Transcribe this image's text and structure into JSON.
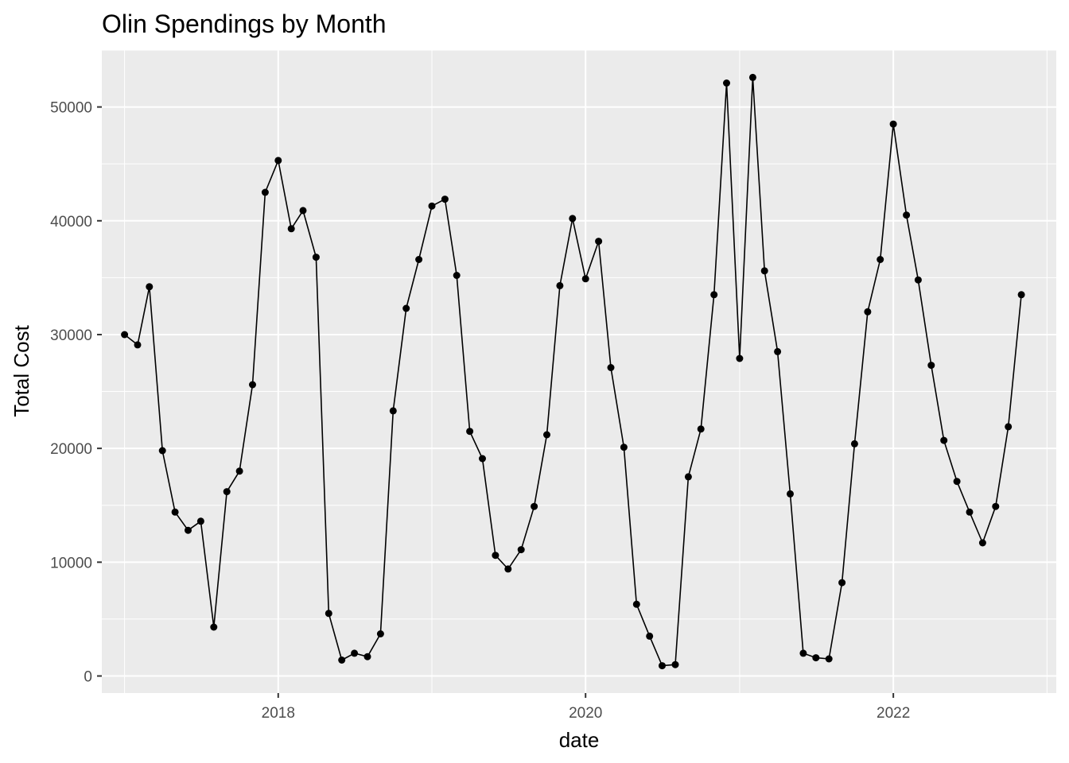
{
  "chart_data": {
    "type": "line",
    "title": "Olin Spendings by Month",
    "xlabel": "date",
    "ylabel": "Total Cost",
    "x_ticks": [
      "2018",
      "2020",
      "2022"
    ],
    "y_ticks": [
      "0",
      "10000",
      "20000",
      "30000",
      "40000",
      "50000"
    ],
    "ylim": [
      -1500,
      55000
    ],
    "xlim": [
      "2016-11-08",
      "2023-01-23"
    ],
    "grid": true,
    "legend": "none",
    "colors": {
      "panel": "#ebebeb",
      "grid": "#ffffff",
      "line": "#000000",
      "tick_text": "#4d4d4d"
    },
    "series": [
      {
        "points": [
          [
            "2017-01-01",
            30000
          ],
          [
            "2017-02-01",
            29100
          ],
          [
            "2017-03-01",
            34200
          ],
          [
            "2017-04-01",
            19800
          ],
          [
            "2017-05-01",
            14400
          ],
          [
            "2017-06-01",
            12800
          ],
          [
            "2017-07-01",
            13600
          ],
          [
            "2017-08-01",
            4300
          ],
          [
            "2017-09-01",
            16200
          ],
          [
            "2017-10-01",
            18000
          ],
          [
            "2017-11-01",
            25600
          ],
          [
            "2017-12-01",
            42500
          ],
          [
            "2018-01-01",
            45300
          ],
          [
            "2018-02-01",
            39300
          ],
          [
            "2018-03-01",
            40900
          ],
          [
            "2018-04-01",
            36800
          ],
          [
            "2018-05-01",
            5500
          ],
          [
            "2018-06-01",
            1400
          ],
          [
            "2018-07-01",
            2000
          ],
          [
            "2018-08-01",
            1700
          ],
          [
            "2018-09-01",
            3700
          ],
          [
            "2018-10-01",
            23300
          ],
          [
            "2018-11-01",
            32300
          ],
          [
            "2018-12-01",
            36600
          ],
          [
            "2019-01-01",
            41300
          ],
          [
            "2019-02-01",
            41900
          ],
          [
            "2019-03-01",
            35200
          ],
          [
            "2019-04-01",
            21500
          ],
          [
            "2019-05-01",
            19100
          ],
          [
            "2019-06-01",
            10600
          ],
          [
            "2019-07-01",
            9400
          ],
          [
            "2019-08-01",
            11100
          ],
          [
            "2019-09-01",
            14900
          ],
          [
            "2019-10-01",
            21200
          ],
          [
            "2019-11-01",
            34300
          ],
          [
            "2019-12-01",
            40200
          ],
          [
            "2020-01-01",
            34900
          ],
          [
            "2020-02-01",
            38200
          ],
          [
            "2020-03-01",
            27100
          ],
          [
            "2020-04-01",
            20100
          ],
          [
            "2020-05-01",
            6300
          ],
          [
            "2020-06-01",
            3500
          ],
          [
            "2020-07-01",
            900
          ],
          [
            "2020-08-01",
            1000
          ],
          [
            "2020-09-01",
            17500
          ],
          [
            "2020-10-01",
            21700
          ],
          [
            "2020-11-01",
            33500
          ],
          [
            "2020-12-01",
            52100
          ],
          [
            "2021-01-01",
            27900
          ],
          [
            "2021-02-01",
            52600
          ],
          [
            "2021-03-01",
            35600
          ],
          [
            "2021-04-01",
            28500
          ],
          [
            "2021-05-01",
            16000
          ],
          [
            "2021-06-01",
            2000
          ],
          [
            "2021-07-01",
            1600
          ],
          [
            "2021-08-01",
            1500
          ],
          [
            "2021-09-01",
            8200
          ],
          [
            "2021-10-01",
            20400
          ],
          [
            "2021-11-01",
            32000
          ],
          [
            "2021-12-01",
            36600
          ],
          [
            "2022-01-01",
            48500
          ],
          [
            "2022-02-01",
            40500
          ],
          [
            "2022-03-01",
            34800
          ],
          [
            "2022-04-01",
            27300
          ],
          [
            "2022-05-01",
            20700
          ],
          [
            "2022-06-01",
            17100
          ],
          [
            "2022-07-01",
            14400
          ],
          [
            "2022-08-01",
            11700
          ],
          [
            "2022-09-01",
            14900
          ],
          [
            "2022-10-01",
            21900
          ],
          [
            "2022-11-01",
            33500
          ]
        ]
      }
    ]
  }
}
